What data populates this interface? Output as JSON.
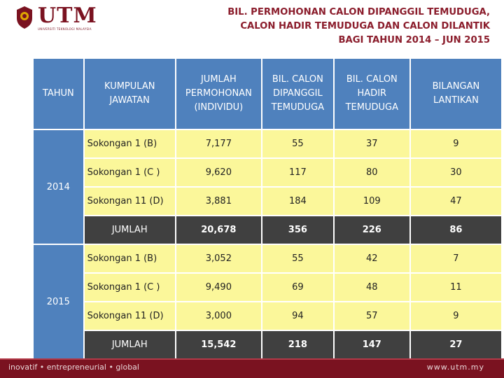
{
  "brand": {
    "logo_text": "UTM",
    "logo_subtitle": "UNIVERSITI TEKNOLOGI MALAYSIA"
  },
  "title": {
    "line1": "BIL. PERMOHONAN CALON DIPANGGIL TEMUDUGA,",
    "line2": "CALON HADIR TEMUDUGA DAN CALON DILANTIK",
    "line3": "BAGI TAHUN 2014 – JUN 2015"
  },
  "table": {
    "headers": {
      "tahun": "TAHUN",
      "kumpulan": "KUMPULAN JAWATAN",
      "jumlah": "JUMLAH PERMOHONAN (INDIVIDU)",
      "dipanggil": "BIL. CALON DIPANGGIL TEMUDUGA",
      "hadir": "BIL. CALON HADIR TEMUDUGA",
      "lantikan": "BILANGAN LANTIKAN"
    },
    "y2014": {
      "year": "2014",
      "rows": [
        {
          "kumpulan": "Sokongan 1 (B)",
          "jumlah": "7,177",
          "dipanggil": "55",
          "hadir": "37",
          "lantikan": "9"
        },
        {
          "kumpulan": "Sokongan 1 (C )",
          "jumlah": "9,620",
          "dipanggil": "117",
          "hadir": "80",
          "lantikan": "30"
        },
        {
          "kumpulan": "Sokongan 11 (D)",
          "jumlah": "3,881",
          "dipanggil": "184",
          "hadir": "109",
          "lantikan": "47"
        }
      ],
      "total": {
        "label": "JUMLAH",
        "jumlah": "20,678",
        "dipanggil": "356",
        "hadir": "226",
        "lantikan": "86"
      }
    },
    "y2015": {
      "year": "2015",
      "rows": [
        {
          "kumpulan": "Sokongan 1 (B)",
          "jumlah": "3,052",
          "dipanggil": "55",
          "hadir": "42",
          "lantikan": "7"
        },
        {
          "kumpulan": "Sokongan 1 (C )",
          "jumlah": "9,490",
          "dipanggil": "69",
          "hadir": "48",
          "lantikan": "11"
        },
        {
          "kumpulan": "Sokongan 11 (D)",
          "jumlah": "3,000",
          "dipanggil": "94",
          "hadir": "57",
          "lantikan": "9"
        }
      ],
      "total": {
        "label": "JUMLAH",
        "jumlah": "15,542",
        "dipanggil": "218",
        "hadir": "147",
        "lantikan": "27"
      }
    }
  },
  "footer": {
    "slogan": "inovatif • entrepreneurial • global",
    "url": "www.utm.my"
  },
  "colors": {
    "header_blue": "#4f81bd",
    "row_yellow": "#fbf79a",
    "total_dark": "#404040",
    "brand_maroon": "#7a1220"
  }
}
